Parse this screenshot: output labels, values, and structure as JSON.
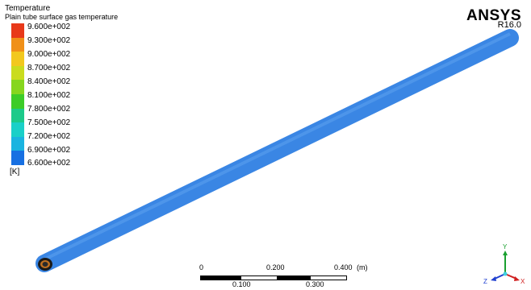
{
  "legend": {
    "title": "Temperature",
    "subtitle": "Plain tube surface gas temperature",
    "unit": "[K]",
    "labels": [
      "9.600e+002",
      "9.300e+002",
      "9.000e+002",
      "8.700e+002",
      "8.400e+002",
      "8.100e+002",
      "7.800e+002",
      "7.500e+002",
      "7.200e+002",
      "6.900e+002",
      "6.600e+002"
    ],
    "colors": [
      "#e8391a",
      "#f09018",
      "#f2c81e",
      "#cadc1e",
      "#86d61e",
      "#3ccc28",
      "#1cca8a",
      "#1ad0c8",
      "#1ab4e0",
      "#1870e2"
    ]
  },
  "brand": {
    "name": "ANSYS",
    "version": "R16.0"
  },
  "scale": {
    "top_labels": [
      "0",
      "0.200",
      "0.400",
      "(m)"
    ],
    "bottom_labels": [
      "0.100",
      "0.300"
    ]
  },
  "axes": {
    "y_label": "Y",
    "z_label": "Z",
    "x_label": "X"
  },
  "tube_color": "#3a86e4"
}
